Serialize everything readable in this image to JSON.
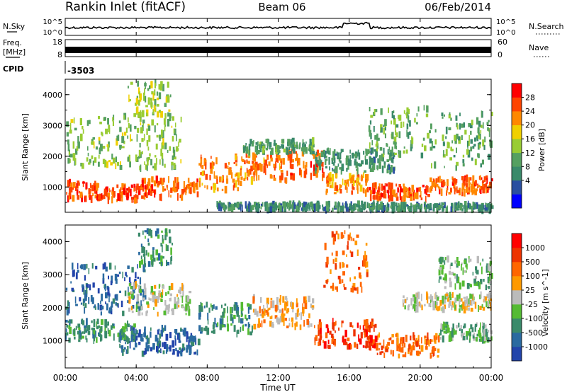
{
  "header": {
    "station": "Rankin Inlet (fitACF)",
    "beam": "Beam 06",
    "date": "06/Feb/2014"
  },
  "params": {
    "nsky_label": "N.Sky",
    "nsky_ticks": [
      "10^5",
      "10^0"
    ],
    "nsearch_label": "N.Search",
    "nsearch_ticks": [
      "10^5",
      "10^0"
    ],
    "freq_label_1": "Freq.",
    "freq_label_2": "[MHz]",
    "freq_ticks": [
      "18",
      "8"
    ],
    "nave_label": "Nave",
    "nave_ticks": [
      "60",
      "0"
    ],
    "cpid_label": "CPID",
    "cpid_value": "-3503"
  },
  "time_axis": {
    "label": "Time UT",
    "ticks": [
      "00:00",
      "04:00",
      "08:00",
      "12:00",
      "16:00",
      "20:00",
      "00:00"
    ],
    "range_hours": [
      0,
      24
    ]
  },
  "colors": {
    "power_scale": [
      "#0000ff",
      "#2a4fa0",
      "#3a8a6a",
      "#55a060",
      "#99cc33",
      "#f0d000",
      "#ff8800",
      "#ff4400",
      "#ff0000"
    ],
    "velocity_scale": [
      "#2244aa",
      "#2a6aa0",
      "#3a8a6a",
      "#55bb33",
      "#bbbbbb",
      "#ff9900",
      "#ff6600",
      "#ee3300",
      "#ff0000"
    ]
  },
  "chart_data": [
    {
      "type": "heatmap",
      "name_panel": "power",
      "ylabel": "Slant Range [km]",
      "yticks": [
        "4000",
        "3000",
        "2000",
        "1000"
      ],
      "ylim": [
        180,
        4500
      ],
      "colorbar_label": "Power [dB]",
      "colorbar_ticks": [
        "28",
        "24",
        "20",
        "16",
        "12",
        "8",
        "4"
      ],
      "colorbar_range": [
        0,
        30
      ],
      "bands": [
        {
          "t0": 0.0,
          "t1": 2.0,
          "r0": 600,
          "r1": 1150,
          "v": 26
        },
        {
          "t0": 2.0,
          "t1": 4.2,
          "r0": 550,
          "r1": 1050,
          "v": 27
        },
        {
          "t0": 4.2,
          "t1": 7.5,
          "r0": 650,
          "r1": 1250,
          "v": 25
        },
        {
          "t0": 7.5,
          "t1": 10.0,
          "r0": 900,
          "r1": 2000,
          "v": 23
        },
        {
          "t0": 10.0,
          "t1": 12.5,
          "r0": 1200,
          "r1": 2100,
          "v": 24
        },
        {
          "t0": 12.5,
          "t1": 14.5,
          "r0": 1300,
          "r1": 2150,
          "v": 25
        },
        {
          "t0": 14.5,
          "t1": 17.0,
          "r0": 800,
          "r1": 1400,
          "v": 22
        },
        {
          "t0": 17.0,
          "t1": 20.5,
          "r0": 600,
          "r1": 1100,
          "v": 26
        },
        {
          "t0": 20.5,
          "t1": 24.0,
          "r0": 800,
          "r1": 1300,
          "v": 25
        },
        {
          "t0": 0.0,
          "t1": 6.5,
          "r0": 1600,
          "r1": 3300,
          "v": 14
        },
        {
          "t0": 3.5,
          "t1": 6.0,
          "r0": 3300,
          "r1": 4400,
          "v": 15
        },
        {
          "t0": 10.0,
          "t1": 14.0,
          "r0": 2100,
          "r1": 2500,
          "v": 10
        },
        {
          "t0": 14.0,
          "t1": 18.5,
          "r0": 1500,
          "r1": 2200,
          "v": 9
        },
        {
          "t0": 17.0,
          "t1": 20.5,
          "r0": 2000,
          "r1": 3600,
          "v": 12
        },
        {
          "t0": 20.5,
          "t1": 24.0,
          "r0": 1600,
          "r1": 3400,
          "v": 11
        },
        {
          "t0": 8.5,
          "t1": 24.0,
          "r0": 250,
          "r1": 450,
          "v": 8
        }
      ]
    },
    {
      "type": "heatmap",
      "name_panel": "velocity",
      "ylabel": "Slant Range [km]",
      "yticks": [
        "4000",
        "3000",
        "2000",
        "1000"
      ],
      "ylim": [
        180,
        4500
      ],
      "colorbar_label": "Velocity [m s^-1]",
      "colorbar_ticks": [
        "1000",
        "500",
        "100",
        "25",
        "-25",
        "-100",
        "-500",
        "-1000"
      ],
      "bands": [
        {
          "t0": 0.0,
          "t1": 4.0,
          "r0": 1000,
          "r1": 1600,
          "v": 2
        },
        {
          "t0": 0.0,
          "t1": 4.5,
          "r0": 1800,
          "r1": 3300,
          "v": 1
        },
        {
          "t0": 3.0,
          "t1": 7.5,
          "r0": 600,
          "r1": 1400,
          "v": 1
        },
        {
          "t0": 3.5,
          "t1": 7.0,
          "r0": 1800,
          "r1": 2700,
          "v": 4
        },
        {
          "t0": 4.0,
          "t1": 6.0,
          "r0": 3300,
          "r1": 4400,
          "v": 2
        },
        {
          "t0": 7.5,
          "t1": 10.5,
          "r0": 1200,
          "r1": 2100,
          "v": 2
        },
        {
          "t0": 10.5,
          "t1": 14.0,
          "r0": 1400,
          "r1": 2300,
          "v": 5
        },
        {
          "t0": 14.0,
          "t1": 17.5,
          "r0": 800,
          "r1": 1600,
          "v": 7
        },
        {
          "t0": 14.5,
          "t1": 17.0,
          "r0": 2500,
          "r1": 4300,
          "v": 6
        },
        {
          "t0": 17.5,
          "t1": 21.0,
          "r0": 500,
          "r1": 1200,
          "v": 6
        },
        {
          "t0": 19.0,
          "t1": 24.0,
          "r0": 1900,
          "r1": 2400,
          "v": 4
        },
        {
          "t0": 21.0,
          "t1": 24.0,
          "r0": 1000,
          "r1": 1500,
          "v": 3
        },
        {
          "t0": 21.0,
          "t1": 24.0,
          "r0": 2600,
          "r1": 3500,
          "v": 3
        }
      ]
    }
  ]
}
